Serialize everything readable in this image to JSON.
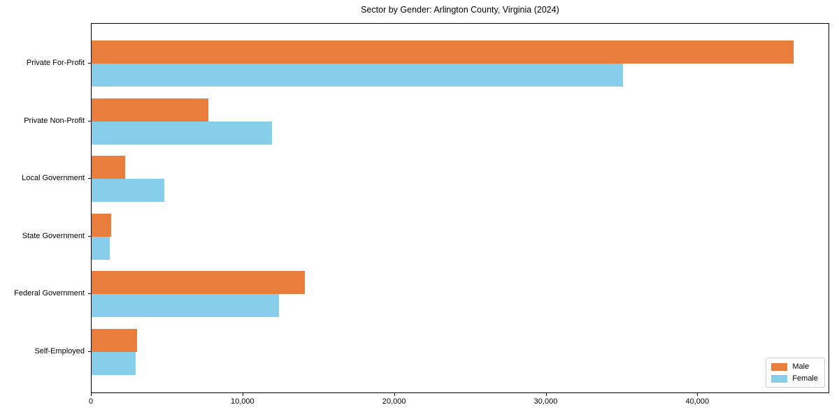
{
  "chart_data": {
    "type": "bar",
    "orientation": "horizontal",
    "title": "Sector by Gender: Arlington County, Virginia (2024)",
    "categories": [
      "Private For-Profit",
      "Private Non-Profit",
      "Local Government",
      "State Government",
      "Federal Government",
      "Self-Employed"
    ],
    "series": [
      {
        "name": "Male",
        "color": "#e87d3c",
        "values": [
          46400,
          7700,
          2200,
          1300,
          14100,
          3000
        ]
      },
      {
        "name": "Female",
        "color": "#87ceeb",
        "values": [
          35100,
          11900,
          4800,
          1200,
          12400,
          2900
        ]
      }
    ],
    "xlabel": "",
    "ylabel": "",
    "xlim": [
      0,
      48700
    ],
    "xticks": [
      0,
      10000,
      20000,
      30000,
      40000
    ],
    "xtick_labels": [
      "0",
      "10,000",
      "20,000",
      "30,000",
      "40,000"
    ],
    "grid": false,
    "legend_position": "lower right",
    "frame_color": "#000000",
    "background_color": "#ffffff"
  }
}
